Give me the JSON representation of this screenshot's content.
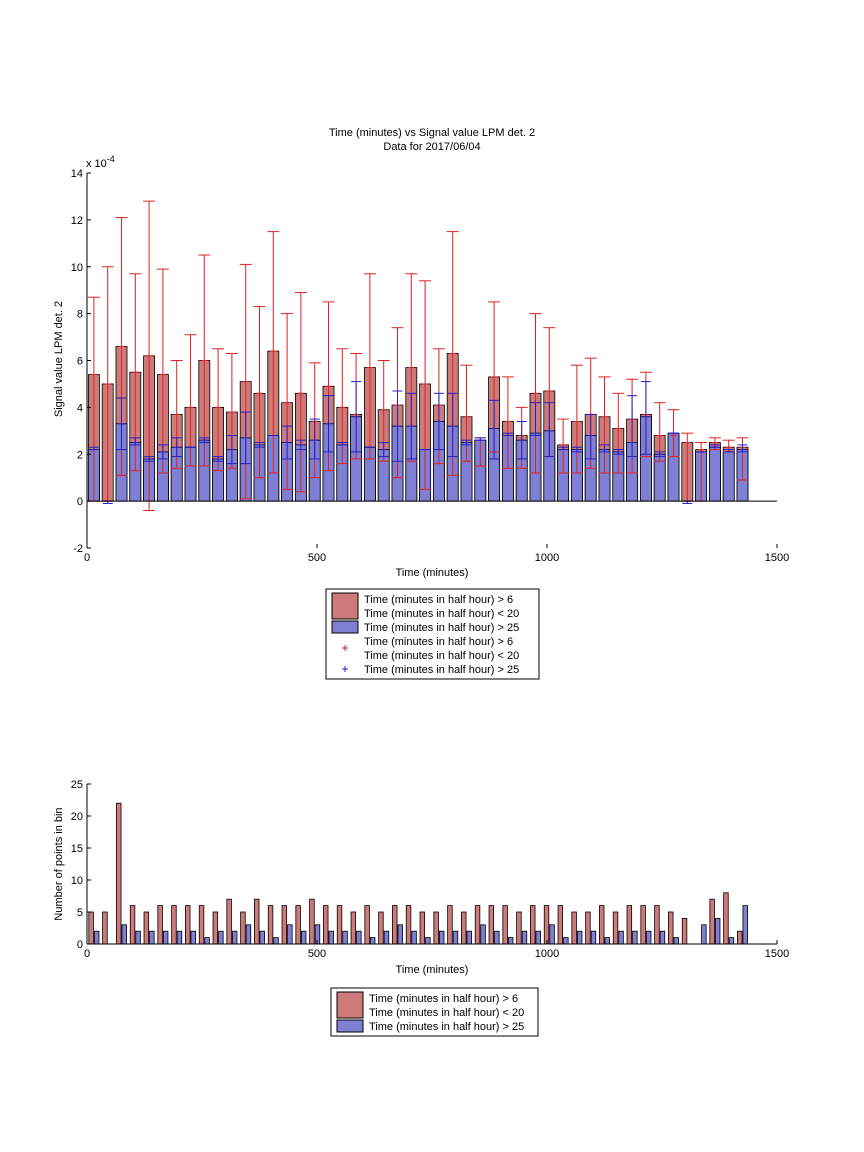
{
  "chart_data": [
    {
      "type": "bar",
      "title": "Time (minutes) vs Signal value LPM det. 2",
      "subtitle": "Data for 2017/06/04",
      "xlabel": "Time (minutes)",
      "ylabel": "Signal value LPM det. 2",
      "y_exponent_label": "x 10",
      "y_exponent_value": "-4",
      "xlim": [
        0,
        1500
      ],
      "ylim": [
        -2,
        14
      ],
      "xticks": [
        "0",
        "500",
        "1000",
        "1500"
      ],
      "yticks": [
        "-2",
        "0",
        "2",
        "4",
        "6",
        "8",
        "10",
        "12",
        "14"
      ],
      "grid": false,
      "bar_width_minutes": 24,
      "x": [
        15,
        45,
        75,
        105,
        135,
        165,
        195,
        225,
        255,
        285,
        315,
        345,
        375,
        405,
        435,
        465,
        495,
        525,
        555,
        585,
        615,
        645,
        675,
        705,
        735,
        765,
        795,
        825,
        855,
        885,
        915,
        945,
        975,
        1005,
        1035,
        1065,
        1095,
        1125,
        1155,
        1185,
        1215,
        1245,
        1275,
        1305,
        1335,
        1365,
        1395,
        1425
      ],
      "series": [
        {
          "name": "Time (minutes in half hour) > 6\nTime (minutes in half hour) < 20",
          "color": "#cc7a7a",
          "values": [
            5.4,
            5.0,
            6.6,
            5.5,
            6.2,
            5.4,
            3.7,
            4.0,
            6.0,
            4.0,
            3.8,
            5.1,
            4.6,
            6.4,
            4.2,
            4.6,
            3.4,
            4.9,
            4.0,
            3.7,
            5.7,
            3.9,
            4.1,
            5.7,
            5.0,
            4.1,
            6.3,
            3.6,
            2.6,
            5.3,
            3.4,
            2.8,
            4.6,
            4.7,
            2.4,
            3.4,
            3.7,
            3.6,
            3.1,
            3.5,
            3.7,
            2.8,
            2.8,
            2.5,
            2.2,
            2.5,
            2.3,
            2.3
          ],
          "err_low": [
            0.0,
            0.0,
            1.1,
            1.3,
            -0.4,
            1.2,
            1.4,
            1.5,
            1.5,
            1.3,
            1.4,
            0.1,
            1.0,
            1.2,
            0.5,
            0.4,
            1.0,
            1.3,
            1.6,
            1.8,
            1.8,
            1.7,
            1.0,
            1.7,
            0.5,
            1.6,
            1.1,
            1.7,
            1.5,
            2.1,
            1.4,
            1.4,
            1.2,
            1.9,
            1.2,
            1.2,
            1.4,
            1.2,
            1.2,
            1.2,
            1.9,
            1.7,
            1.9,
            0.0,
            0.0,
            2.2,
            2.1,
            0.9
          ],
          "err_high": [
            8.7,
            10.0,
            12.1,
            9.7,
            12.8,
            9.9,
            6.0,
            7.1,
            10.5,
            6.5,
            6.3,
            10.1,
            8.3,
            11.5,
            8.0,
            8.9,
            5.9,
            8.5,
            6.5,
            6.3,
            9.7,
            6.0,
            7.4,
            9.7,
            9.4,
            6.5,
            11.5,
            5.8,
            2.7,
            8.5,
            5.3,
            4.0,
            8.0,
            7.4,
            3.5,
            5.8,
            6.1,
            5.3,
            4.6,
            5.2,
            5.5,
            4.2,
            3.9,
            2.9,
            2.5,
            2.7,
            2.6,
            2.7
          ]
        },
        {
          "name": "Time (minutes in half hour) > 25",
          "color": "#7f7fd4",
          "values": [
            2.2,
            0.0,
            3.3,
            2.5,
            1.8,
            2.1,
            2.3,
            2.3,
            2.6,
            1.8,
            2.2,
            2.7,
            2.4,
            2.8,
            2.5,
            2.4,
            2.6,
            3.3,
            2.4,
            3.6,
            2.3,
            2.2,
            3.2,
            3.2,
            2.2,
            3.4,
            3.2,
            2.5,
            2.6,
            3.1,
            2.8,
            2.6,
            2.9,
            3.0,
            2.2,
            2.2,
            2.8,
            2.2,
            2.1,
            2.5,
            3.6,
            2.0,
            2.9,
            0.0,
            2.1,
            2.3,
            2.1,
            2.2
          ],
          "err_low": [
            2.2,
            -0.1,
            2.2,
            2.4,
            1.7,
            1.8,
            1.9,
            2.3,
            2.5,
            1.7,
            1.6,
            1.6,
            2.3,
            2.8,
            1.8,
            2.2,
            1.8,
            2.1,
            2.4,
            2.1,
            2.3,
            1.9,
            1.7,
            1.8,
            2.2,
            2.2,
            1.9,
            2.4,
            2.6,
            1.8,
            2.8,
            1.8,
            2.8,
            1.9,
            2.2,
            2.1,
            1.8,
            2.1,
            2.0,
            1.9,
            2.0,
            1.9,
            2.9,
            -0.1,
            2.1,
            2.3,
            2.1,
            2.1
          ],
          "err_high": [
            2.3,
            0.0,
            4.4,
            2.7,
            1.9,
            2.4,
            2.7,
            2.3,
            2.7,
            1.9,
            2.8,
            3.8,
            2.5,
            2.8,
            3.2,
            2.6,
            3.5,
            4.5,
            2.5,
            5.1,
            2.3,
            2.5,
            4.7,
            4.6,
            2.2,
            4.6,
            4.6,
            2.6,
            2.7,
            4.3,
            2.9,
            3.4,
            4.2,
            4.2,
            2.3,
            2.3,
            3.7,
            2.4,
            2.2,
            4.5,
            5.1,
            2.1,
            2.9,
            0.0,
            2.1,
            2.4,
            2.2,
            2.4
          ]
        }
      ],
      "legend": {
        "placement": "below",
        "entries": [
          {
            "kind": "patch",
            "color": "#cc7a7a",
            "line1": "Time (minutes in half hour) > 6",
            "line2": "Time (minutes in half hour) < 20"
          },
          {
            "kind": "patch",
            "color": "#7f7fd4",
            "line1": "Time (minutes in half hour) > 25"
          },
          {
            "kind": "marker",
            "color": "#dd2222",
            "line1": "Time (minutes in half hour) > 6",
            "line2": "Time (minutes in half hour) < 20"
          },
          {
            "kind": "marker",
            "color": "#2222cc",
            "line1": "Time (minutes in half hour) > 25"
          }
        ]
      }
    },
    {
      "type": "bar",
      "xlabel": "Time (minutes)",
      "ylabel": "Number of points in bin",
      "xlim": [
        0,
        1500
      ],
      "ylim": [
        0,
        25
      ],
      "xticks": [
        "0",
        "500",
        "1000",
        "1500"
      ],
      "yticks": [
        "0",
        "5",
        "10",
        "15",
        "20",
        "25"
      ],
      "grid": false,
      "bar_width_minutes": 10,
      "x": [
        15,
        45,
        75,
        105,
        135,
        165,
        195,
        225,
        255,
        285,
        315,
        345,
        375,
        405,
        435,
        465,
        495,
        525,
        555,
        585,
        615,
        645,
        675,
        705,
        735,
        765,
        795,
        825,
        855,
        885,
        915,
        945,
        975,
        1005,
        1035,
        1065,
        1095,
        1125,
        1155,
        1185,
        1215,
        1245,
        1275,
        1305,
        1335,
        1365,
        1395,
        1425
      ],
      "series": [
        {
          "name": "Time (minutes in half hour) > 6\nTime (minutes in half hour) < 20",
          "color": "#cc7a7a",
          "values": [
            5,
            5,
            22,
            6,
            5,
            6,
            6,
            6,
            6,
            5,
            7,
            5,
            7,
            6,
            6,
            6,
            7,
            6,
            6,
            5,
            6,
            5,
            6,
            6,
            5,
            5,
            6,
            5,
            6,
            6,
            6,
            5,
            6,
            6,
            6,
            5,
            5,
            6,
            5,
            6,
            6,
            6,
            5,
            4,
            0,
            7,
            8,
            2
          ]
        },
        {
          "name": "Time (minutes in half hour) > 25",
          "color": "#7f7fd4",
          "values": [
            2,
            0,
            3,
            2,
            2,
            2,
            2,
            2,
            1,
            2,
            2,
            3,
            2,
            1,
            3,
            2,
            3,
            2,
            2,
            2,
            1,
            2,
            3,
            2,
            1,
            2,
            2,
            2,
            3,
            2,
            1,
            2,
            2,
            3,
            1,
            2,
            2,
            1,
            2,
            2,
            2,
            2,
            1,
            0,
            3,
            4,
            1,
            6
          ]
        }
      ],
      "legend": {
        "placement": "below",
        "entries": [
          {
            "kind": "patch",
            "color": "#cc7a7a",
            "line1": "Time (minutes in half hour) > 6",
            "line2": "Time (minutes in half hour) < 20"
          },
          {
            "kind": "patch",
            "color": "#7f7fd4",
            "line1": "Time (minutes in half hour) > 25"
          }
        ]
      }
    }
  ]
}
